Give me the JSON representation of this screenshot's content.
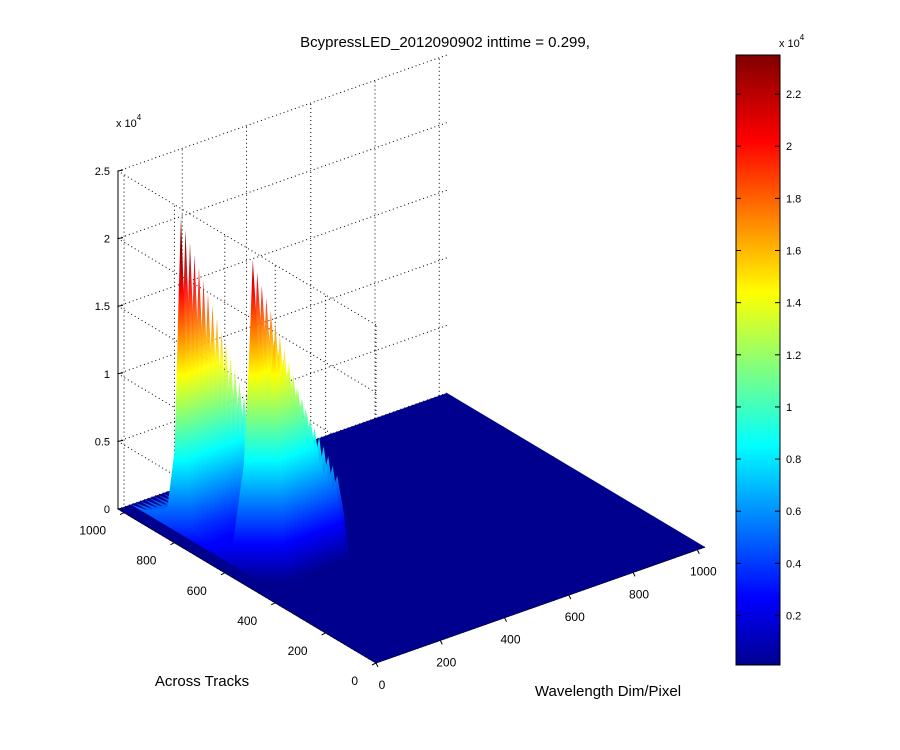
{
  "chart_data": {
    "type": "surface",
    "title": "BcypressLED_2012090902 inttime = 0.299,",
    "xlabel": "Wavelength Dim/Pixel",
    "ylabel": "Across Tracks",
    "zlabel": "",
    "x_range": [
      0,
      1024
    ],
    "y_range": [
      0,
      1024
    ],
    "z_range": [
      0,
      25000
    ],
    "x_ticks": [
      "0",
      "200",
      "400",
      "600",
      "800",
      "1000"
    ],
    "y_ticks": [
      "0",
      "200",
      "400",
      "600",
      "800",
      "1000"
    ],
    "z_ticks": [
      "0",
      "0.5",
      "1",
      "1.5",
      "2",
      "2.5"
    ],
    "z_multiplier": "x 10",
    "z_multiplier_exp": "4",
    "grid": true,
    "colormap": "jet",
    "surface_description": "Intensity profile along the across-track edge at the far side, flat (~0) elsewhere",
    "profile_across_tracks": [
      {
        "y": 1024,
        "z": 0
      },
      {
        "y": 960,
        "z": 300
      },
      {
        "y": 880,
        "z": 1200
      },
      {
        "y": 850,
        "z": 6000
      },
      {
        "y": 835,
        "z": 17000
      },
      {
        "y": 825,
        "z": 23500
      },
      {
        "y": 812,
        "z": 17000
      },
      {
        "y": 795,
        "z": 6000
      },
      {
        "y": 775,
        "z": 1200
      },
      {
        "y": 700,
        "z": 700
      },
      {
        "y": 620,
        "z": 1500
      },
      {
        "y": 575,
        "z": 8000
      },
      {
        "y": 555,
        "z": 16000
      },
      {
        "y": 540,
        "z": 23500
      },
      {
        "y": 510,
        "z": 15000
      },
      {
        "y": 480,
        "z": 13500
      },
      {
        "y": 455,
        "z": 18500
      },
      {
        "y": 430,
        "z": 12000
      },
      {
        "y": 405,
        "z": 3000
      },
      {
        "y": 380,
        "z": 1000
      },
      {
        "y": 300,
        "z": 500
      },
      {
        "y": 0,
        "z": 0
      }
    ],
    "colorbar": {
      "min": 100,
      "max": 23500,
      "ticks": [
        "0.2",
        "0.4",
        "0.6",
        "0.8",
        "1",
        "1.2",
        "1.4",
        "1.6",
        "1.8",
        "2",
        "2.2"
      ],
      "multiplier": "x 10",
      "multiplier_exp": "4"
    }
  }
}
